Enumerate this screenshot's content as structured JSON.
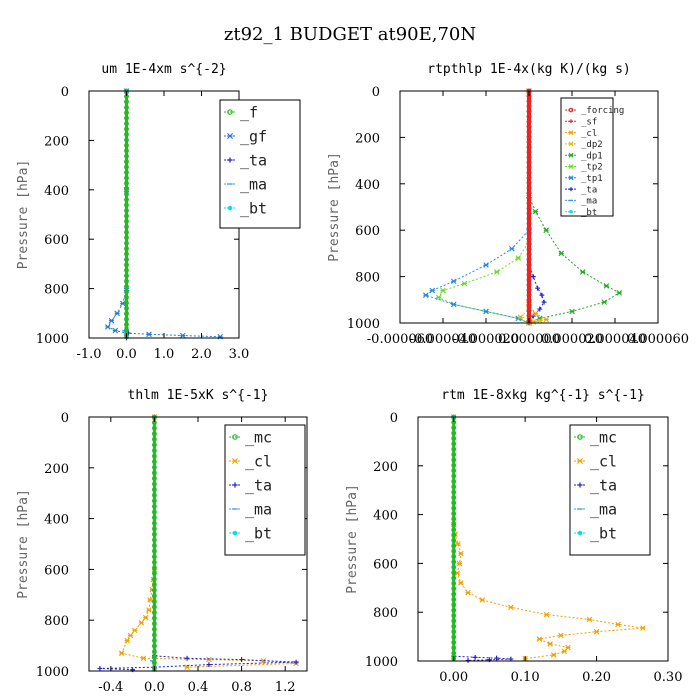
{
  "title": "zt92_1  BUDGET at90E,70N",
  "colors": {
    "f": "#22bb22",
    "gf": "#2277dd",
    "ta": "#2222cc",
    "ma": "#3399ee",
    "bt": "#00e0f0",
    "forcing": "#ee2222",
    "sf": "#ee2222",
    "cl": "#f0a000",
    "dp2": "#e0c000",
    "dp1": "#22aa22",
    "tp2": "#66dd22",
    "tp1": "#2288ee",
    "mc": "#22bb22"
  },
  "chart_data": [
    {
      "id": "um",
      "type": "line",
      "title": "um  1E-4xm s^{-2}",
      "ylabel": "Pressure [hPa]",
      "xlim": [
        -1.0,
        3.0
      ],
      "ylim": [
        1000,
        0
      ],
      "xticks": [
        -1.0,
        0.0,
        1.0,
        2.0,
        3.0
      ],
      "xtick_labels": [
        "-1.0",
        "0.0",
        "1.0",
        "2.0",
        "3.0"
      ],
      "yticks": [
        0,
        200,
        400,
        600,
        800,
        1000
      ],
      "ytick_labels": [
        "0",
        "200",
        "400",
        "600",
        "800",
        "1000"
      ],
      "legend": [
        "_f",
        "_gf",
        "_ta",
        "_ma",
        "_bt"
      ],
      "legend_position": "top-right",
      "series": [
        {
          "key": "gf",
          "name": "_gf",
          "x": [
            0,
            0,
            0,
            -0.1,
            -0.25,
            -0.4,
            -0.5,
            -0.3,
            0.0,
            0.6,
            1.5,
            2.5
          ],
          "y": [
            0,
            400,
            800,
            860,
            900,
            930,
            955,
            970,
            980,
            985,
            990,
            995
          ]
        },
        {
          "key": "ta",
          "name": "_ta",
          "x": [
            0,
            0,
            0.05,
            0.0
          ],
          "y": [
            0,
            900,
            980,
            1000
          ]
        },
        {
          "key": "ma",
          "name": "_ma",
          "x": [
            0,
            0,
            -0.05,
            0.0
          ],
          "y": [
            0,
            900,
            970,
            1000
          ]
        },
        {
          "key": "bt",
          "name": "_bt",
          "x": [
            0,
            0
          ],
          "y": [
            0,
            1000
          ]
        },
        {
          "key": "f",
          "name": "_f",
          "x": [
            0,
            0
          ],
          "y": [
            0,
            1000
          ]
        }
      ]
    },
    {
      "id": "rtpthlp",
      "type": "line",
      "title": "rtpthlp  1E-4x(kg K)/(kg s)",
      "ylabel": "Pressure [hPa]",
      "xlim": [
        -6e-05,
        6e-05
      ],
      "ylim": [
        1000,
        0
      ],
      "xticks": [
        -6e-05,
        -4e-05,
        -2e-05,
        0.0,
        2e-05,
        4e-05,
        6e-05
      ],
      "xtick_labels": [
        "-0.000060",
        "-0.000040",
        "-0.000020",
        "0.000000",
        "0.000020",
        "0.000040",
        "0.000060"
      ],
      "yticks": [
        0,
        200,
        400,
        600,
        800,
        1000
      ],
      "ytick_labels": [
        "0",
        "200",
        "400",
        "600",
        "800",
        "1000"
      ],
      "legend": [
        "_forcing",
        "_sf",
        "_cl",
        "_dp2",
        "_dp1",
        "_tp2",
        "_tp1",
        "_ta",
        "_ma",
        "_bt"
      ],
      "legend_position": "top-right",
      "series": [
        {
          "key": "dp1",
          "name": "_dp1",
          "x": [
            0,
            0,
            3e-06,
            8e-06,
            1.5e-05,
            2.5e-05,
            3.6e-05,
            4.2e-05,
            3.5e-05,
            2e-05,
            5e-06,
            0
          ],
          "y": [
            0,
            450,
            520,
            600,
            700,
            780,
            840,
            870,
            910,
            950,
            980,
            1000
          ]
        },
        {
          "key": "tp2",
          "name": "_tp2",
          "x": [
            0,
            0,
            -5e-06,
            -1.5e-05,
            -3e-05,
            -4e-05,
            -4.2e-05,
            -3.5e-05,
            -2e-05,
            -5e-06,
            0
          ],
          "y": [
            0,
            650,
            720,
            780,
            830,
            860,
            890,
            920,
            950,
            980,
            1000
          ]
        },
        {
          "key": "tp1",
          "name": "_tp1",
          "x": [
            0,
            0,
            -8e-06,
            -2e-05,
            -3.5e-05,
            -4.5e-05,
            -4.8e-05,
            -3.5e-05,
            -2e-05,
            -5e-06,
            0
          ],
          "y": [
            0,
            600,
            680,
            750,
            820,
            860,
            880,
            920,
            950,
            980,
            1000
          ]
        },
        {
          "key": "ta",
          "name": "_ta",
          "x": [
            0,
            0,
            2e-06,
            4e-06,
            6e-06,
            7e-06,
            5e-06,
            2e-06,
            0
          ],
          "y": [
            0,
            750,
            800,
            850,
            880,
            910,
            940,
            970,
            1000
          ]
        },
        {
          "key": "cl",
          "name": "_cl",
          "x": [
            0,
            0,
            3e-06,
            8e-06,
            2e-06,
            0
          ],
          "y": [
            0,
            920,
            960,
            985,
            995,
            1000
          ]
        },
        {
          "key": "dp2",
          "name": "_dp2",
          "x": [
            0,
            0,
            -4e-06,
            5e-06,
            0
          ],
          "y": [
            0,
            940,
            975,
            990,
            1000
          ]
        },
        {
          "key": "ma",
          "name": "_ma",
          "x": [
            0,
            0
          ],
          "y": [
            0,
            1000
          ]
        },
        {
          "key": "bt",
          "name": "_bt",
          "x": [
            0,
            0
          ],
          "y": [
            0,
            1000
          ]
        },
        {
          "key": "sf",
          "name": "_sf",
          "x": [
            0,
            0
          ],
          "y": [
            0,
            1000
          ]
        },
        {
          "key": "forcing",
          "name": "_forcing",
          "x": [
            0,
            0
          ],
          "y": [
            0,
            1000
          ]
        }
      ]
    },
    {
      "id": "thlm",
      "type": "line",
      "title": "thlm  1E-5xK s^{-1}",
      "ylabel": "Pressure [hPa]",
      "xlim": [
        -0.6,
        1.4
      ],
      "ylim": [
        1000,
        0
      ],
      "xticks": [
        -0.4,
        0.0,
        0.4,
        0.8,
        1.2
      ],
      "xtick_labels": [
        "-0.4",
        "0.0",
        "0.4",
        "0.8",
        "1.2"
      ],
      "yticks": [
        0,
        200,
        400,
        600,
        800,
        1000
      ],
      "ytick_labels": [
        "0",
        "200",
        "400",
        "600",
        "800",
        "1000"
      ],
      "legend": [
        "_mc",
        "_cl",
        "_ta",
        "_ma",
        "_bt"
      ],
      "legend_position": "top-right",
      "series": [
        {
          "key": "cl",
          "name": "_cl",
          "x": [
            0,
            0,
            -0.01,
            -0.02,
            -0.04,
            -0.05,
            -0.08,
            -0.12,
            -0.18,
            -0.22,
            -0.25,
            -0.3,
            -0.1,
            0.5,
            1.0,
            1.3,
            0.3
          ],
          "y": [
            0,
            600,
            640,
            680,
            720,
            760,
            790,
            810,
            840,
            860,
            880,
            930,
            950,
            955,
            960,
            970,
            985
          ]
        },
        {
          "key": "ta",
          "name": "_ta",
          "x": [
            0,
            0,
            0.3,
            0.8,
            1.3,
            0.5,
            0.0,
            -0.5,
            -0.2
          ],
          "y": [
            0,
            940,
            950,
            955,
            965,
            975,
            985,
            990,
            995
          ]
        },
        {
          "key": "ma",
          "name": "_ma",
          "x": [
            0,
            0,
            -0.02,
            0.0
          ],
          "y": [
            0,
            900,
            960,
            1000
          ]
        },
        {
          "key": "bt",
          "name": "_bt",
          "x": [
            0,
            0
          ],
          "y": [
            0,
            1000
          ]
        },
        {
          "key": "mc",
          "name": "_mc",
          "x": [
            0,
            0
          ],
          "y": [
            0,
            1000
          ]
        }
      ]
    },
    {
      "id": "rtm",
      "type": "line",
      "title": "rtm  1E-8xkg kg^{-1} s^{-1}",
      "ylabel": "Pressure [hPa]",
      "xlim": [
        -0.05,
        0.3
      ],
      "ylim": [
        1000,
        0
      ],
      "xticks": [
        0.0,
        0.1,
        0.2,
        0.3
      ],
      "xtick_labels": [
        "0.00",
        "0.10",
        "0.20",
        "0.30"
      ],
      "yticks": [
        0,
        200,
        400,
        600,
        800,
        1000
      ],
      "ytick_labels": [
        "0",
        "200",
        "400",
        "600",
        "800",
        "1000"
      ],
      "legend": [
        "_mc",
        "_cl",
        "_ta",
        "_ma",
        "_bt"
      ],
      "legend_position": "top-right",
      "series": [
        {
          "key": "cl",
          "name": "_cl",
          "x": [
            0,
            0,
            0.002,
            0.006,
            0.01,
            0.008,
            0.005,
            0.01,
            0.02,
            0.04,
            0.08,
            0.13,
            0.19,
            0.23,
            0.265,
            0.2,
            0.15,
            0.12,
            0.135,
            0.16,
            0.155,
            0.14,
            0.1
          ],
          "y": [
            0,
            440,
            480,
            520,
            560,
            600,
            640,
            680,
            720,
            750,
            780,
            810,
            830,
            850,
            865,
            880,
            895,
            910,
            930,
            945,
            960,
            975,
            990
          ]
        },
        {
          "key": "ta",
          "name": "_ta",
          "x": [
            0,
            0,
            0.03,
            0.06,
            0.08,
            0.05,
            0.02
          ],
          "y": [
            0,
            980,
            985,
            988,
            992,
            995,
            998
          ]
        },
        {
          "key": "ma",
          "name": "_ma",
          "x": [
            0,
            0
          ],
          "y": [
            0,
            1000
          ]
        },
        {
          "key": "bt",
          "name": "_bt",
          "x": [
            0,
            0
          ],
          "y": [
            0,
            1000
          ]
        },
        {
          "key": "mc",
          "name": "_mc",
          "x": [
            0,
            0
          ],
          "y": [
            0,
            1000
          ]
        }
      ]
    }
  ]
}
